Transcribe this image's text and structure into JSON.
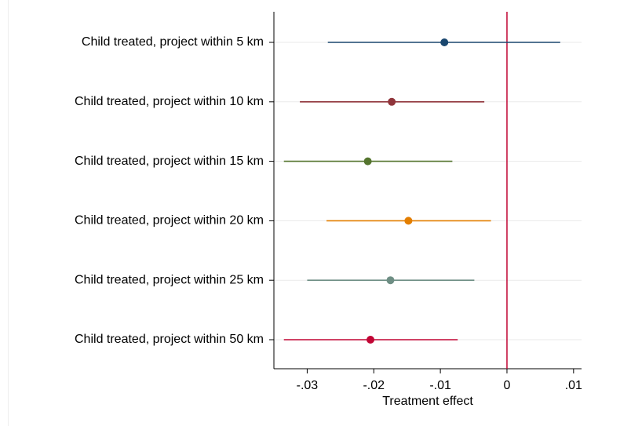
{
  "chart_data": {
    "type": "coefplot",
    "xlabel": "Treatment effect",
    "categories": [
      "Child treated, project within 5 km",
      "Child treated, project within 10 km",
      "Child treated, project within 15 km",
      "Child treated, project within 20 km",
      "Child treated, project within 25 km",
      "Child treated, project within 50 km"
    ],
    "values": [
      -0.0094,
      -0.0173,
      -0.0209,
      -0.0148,
      -0.0175,
      -0.0205
    ],
    "lower": [
      -0.0269,
      -0.0311,
      -0.0335,
      -0.0271,
      -0.03,
      -0.0335
    ],
    "upper": [
      0.008,
      -0.0034,
      -0.0082,
      -0.0024,
      -0.0049,
      -0.0074
    ],
    "colors": [
      "#1a476f",
      "#90353b",
      "#55752f",
      "#e37e00",
      "#6e8e84",
      "#c10534"
    ],
    "xlim": [
      -0.035,
      0.0112
    ],
    "xticks": [
      {
        "value": -0.03,
        "label": "-.03"
      },
      {
        "value": -0.02,
        "label": "-.02"
      },
      {
        "value": -0.01,
        "label": "-.01"
      },
      0,
      {
        "value": 0.01,
        "label": ".01"
      }
    ],
    "reference_line": 0,
    "reference_color": "#c10534",
    "grid": true
  }
}
